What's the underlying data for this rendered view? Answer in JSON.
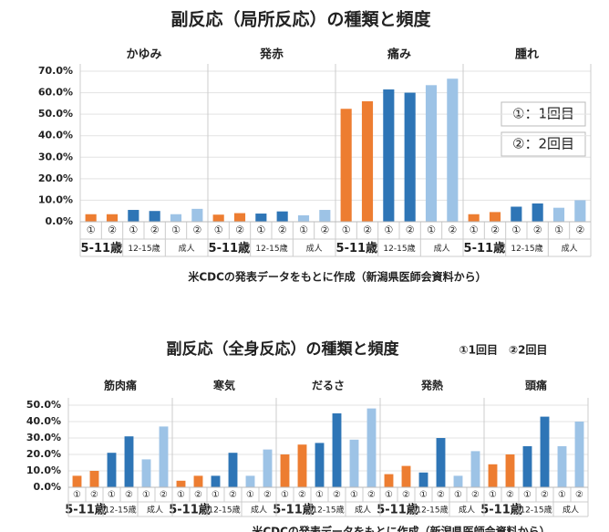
{
  "chart_data": [
    {
      "type": "bar",
      "title": "副反応（局所反応）の種類と頻度",
      "legend": [
        "①：1回目",
        "②：2回目"
      ],
      "source": "米CDCの発表データをもとに作成（新潟県医師会資料から）",
      "groups": [
        "5-11歳",
        "12-15歳",
        "成人"
      ],
      "group_colors": [
        "#ed7d31",
        "#2e75b6",
        "#9dc3e6"
      ],
      "dose_labels": [
        "①",
        "②"
      ],
      "panels": [
        {
          "name": "かゆみ",
          "values": [
            3.5,
            3.5,
            5.5,
            5.0,
            3.5,
            6.0
          ]
        },
        {
          "name": "発赤",
          "values": [
            3.3,
            4.0,
            3.8,
            4.8,
            3.0,
            5.5
          ]
        },
        {
          "name": "痛み",
          "values": [
            52.5,
            56.0,
            61.5,
            60.0,
            63.5,
            66.5
          ]
        },
        {
          "name": "腫れ",
          "values": [
            3.5,
            4.5,
            7.0,
            8.5,
            6.5,
            10.0
          ]
        }
      ],
      "ylim": [
        0,
        70
      ],
      "yticks": [
        {
          "value": 0,
          "label": "0.0%"
        },
        {
          "value": 10,
          "label": "10.0%"
        },
        {
          "value": 20,
          "label": "20.0%"
        },
        {
          "value": 30,
          "label": "30.0%"
        },
        {
          "value": 40,
          "label": "40.0%"
        },
        {
          "value": 50,
          "label": "50.0%"
        },
        {
          "value": 60,
          "label": "60.0%"
        },
        {
          "value": 70,
          "label": "70.0%"
        }
      ]
    },
    {
      "type": "bar",
      "title": "副反応（全身反応）の種類と頻度",
      "legend": [
        "①1回目　②2回目"
      ],
      "source": "米CDCの発表データをもとに作成（新潟県医師会資料から）",
      "groups": [
        "5-11歳",
        "12-15歳",
        "成人"
      ],
      "group_colors": [
        "#ed7d31",
        "#2e75b6",
        "#9dc3e6"
      ],
      "dose_labels": [
        "①",
        "②"
      ],
      "panels": [
        {
          "name": "筋肉痛",
          "values": [
            7,
            10,
            21,
            31,
            17,
            37
          ]
        },
        {
          "name": "寒気",
          "values": [
            4,
            7,
            7,
            21,
            7,
            23
          ]
        },
        {
          "name": "だるさ",
          "values": [
            20,
            26,
            27,
            45,
            29,
            48
          ]
        },
        {
          "name": "発熱",
          "values": [
            8,
            13,
            9,
            30,
            7,
            22
          ]
        },
        {
          "name": "頭痛",
          "values": [
            14,
            20,
            25,
            43,
            25,
            40
          ]
        }
      ],
      "ylim": [
        0,
        50
      ],
      "yticks": [
        {
          "value": 0,
          "label": "0.0%"
        },
        {
          "value": 10,
          "label": "10.0%"
        },
        {
          "value": 20,
          "label": "20.0%"
        },
        {
          "value": 30,
          "label": "30.0%"
        },
        {
          "value": 40,
          "label": "40.0%"
        },
        {
          "value": 50,
          "label": "50.0%"
        }
      ]
    }
  ]
}
